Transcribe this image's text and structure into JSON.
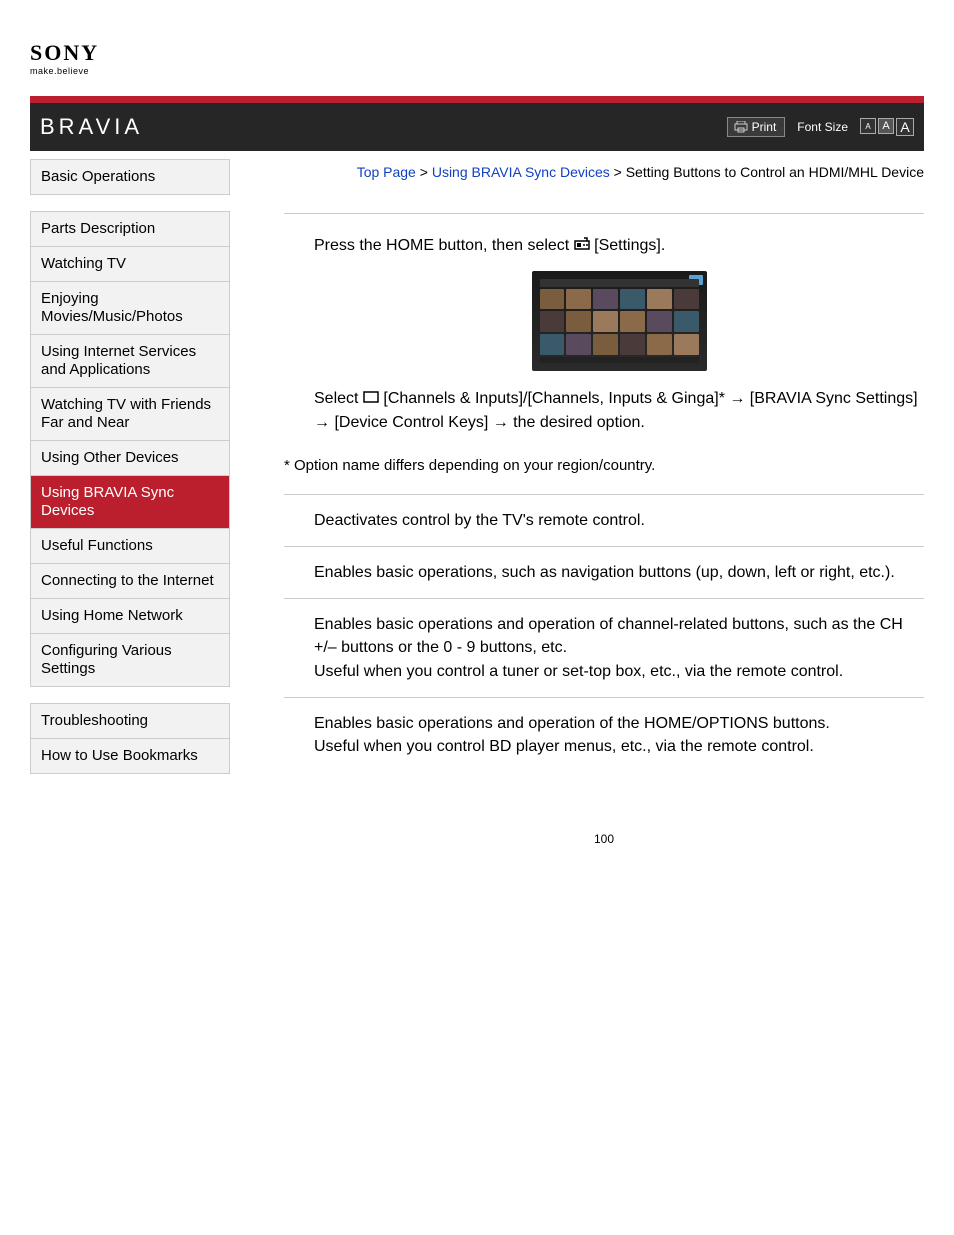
{
  "logo": {
    "brand": "SONY",
    "tagline": "make.believe"
  },
  "header": {
    "product": "BRAVIA",
    "print": "Print",
    "fontSizeLabel": "Font Size",
    "fontA": "A"
  },
  "breadcrumb": {
    "top": "Top Page",
    "mid": "Using BRAVIA Sync Devices",
    "current": "Setting Buttons to Control an HDMI/MHL Device",
    "sep": ">"
  },
  "nav": {
    "group1": [
      "Basic Operations"
    ],
    "group2": [
      "Parts Description",
      "Watching TV",
      "Enjoying Movies/Music/Photos",
      "Using Internet Services and Applications",
      "Watching TV with Friends Far and Near",
      "Using Other Devices",
      "Using BRAVIA Sync Devices",
      "Useful Functions",
      "Connecting to the Internet",
      "Using Home Network",
      "Configuring Various Settings"
    ],
    "group3": [
      "Troubleshooting",
      "How to Use Bookmarks"
    ],
    "activeIndex": 6
  },
  "steps": {
    "step1a": "Press the HOME button, then select ",
    "step1b": " [Settings].",
    "step2a": "Select ",
    "step2b": " [Channels & Inputs]/[Channels, Inputs & Ginga]* → [BRAVIA Sync Settings] → [Device Control Keys] → the desired option."
  },
  "footnote": "* Option name differs depending on your region/country.",
  "options": [
    "Deactivates control by the TV's remote control.",
    "Enables basic operations, such as navigation buttons (up, down, left or right, etc.).",
    "Enables basic operations and operation of channel-related buttons, such as the CH +/– buttons or the 0 - 9 buttons, etc.\nUseful when you control a tuner or set-top box, etc., via the remote control.",
    "Enables basic operations and operation of the HOME/OPTIONS buttons.\nUseful when you control BD player menus, etc., via the remote control."
  ],
  "pageNumber": "100"
}
